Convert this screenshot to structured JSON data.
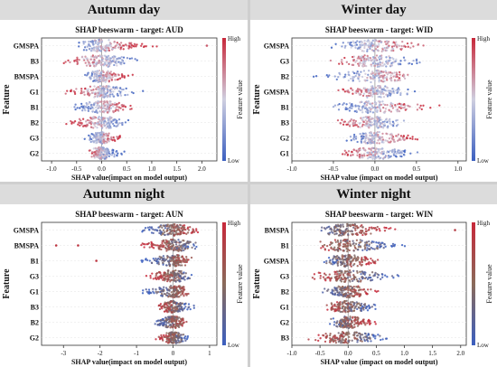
{
  "panels": [
    {
      "header": "Autumn day",
      "chart_data": {
        "type": "scatter",
        "title": "SHAP beeswarm - target: AUD",
        "xlabel": "SHAP value(impact on model output)",
        "ylabel": "Feature",
        "features": [
          "GMSPA",
          "B3",
          "BMSPA",
          "G1",
          "B1",
          "B2",
          "G3",
          "G2"
        ],
        "xlim": [
          -1.2,
          2.3
        ],
        "xticks": [
          "-1.0",
          "-0.5",
          "0.0",
          "0.5",
          "1.0",
          "1.5",
          "2.0"
        ],
        "xtick_values": [
          -1.0,
          -0.5,
          0.0,
          0.5,
          1.0,
          1.5,
          2.0
        ],
        "spreads": [
          [
            -0.55,
            1.3
          ],
          [
            -1.1,
            0.9
          ],
          [
            -0.45,
            0.75
          ],
          [
            -0.9,
            0.95
          ],
          [
            -0.85,
            0.9
          ],
          [
            -1.05,
            0.7
          ],
          [
            -0.4,
            0.6
          ],
          [
            -0.35,
            0.6
          ]
        ],
        "outliers": [
          [
            2.1
          ],
          [],
          [],
          [],
          [],
          [],
          [],
          []
        ],
        "colorbar": {
          "high": "High",
          "low": "Low",
          "label": "Feature value"
        }
      }
    },
    {
      "header": "Winter day",
      "chart_data": {
        "type": "scatter",
        "title": "SHAP beeswarm - target: WID",
        "xlabel": "SHAP value (impact on model output)",
        "ylabel": "Feature",
        "features": [
          "GMSPA",
          "G3",
          "B2",
          "GMSPA",
          "B1",
          "B3",
          "G2",
          "G1"
        ],
        "xlim": [
          -1.0,
          1.1
        ],
        "xticks": [
          "-1.0",
          "-0.5",
          "0.0",
          "0.5",
          "1.0"
        ],
        "xtick_values": [
          -1.0,
          -0.5,
          0.0,
          0.5,
          1.0
        ],
        "spreads": [
          [
            -0.75,
            0.85
          ],
          [
            -0.65,
            0.9
          ],
          [
            -0.95,
            0.65
          ],
          [
            -0.55,
            0.7
          ],
          [
            -0.7,
            0.95
          ],
          [
            -0.75,
            0.5
          ],
          [
            -0.45,
            0.7
          ],
          [
            -0.55,
            0.7
          ]
        ],
        "outliers": [
          [],
          [],
          [],
          [],
          [],
          [],
          [],
          []
        ],
        "colorbar": {
          "high": "High",
          "low": "Low",
          "label": "Feature value"
        }
      }
    },
    {
      "header": "Autumn night",
      "chart_data": {
        "type": "scatter",
        "title": "SHAP beeswarm - target: AUN",
        "xlabel": "SHAP value(impact on model output)",
        "ylabel": "Feature",
        "features": [
          "GMSPA",
          "BMSPA",
          "B1",
          "G3",
          "G1",
          "B3",
          "B2",
          "G2"
        ],
        "xlim": [
          -3.6,
          1.2
        ],
        "xticks": [
          "-3",
          "-2",
          "-1",
          "0",
          "1"
        ],
        "xtick_values": [
          -3,
          -2,
          -1,
          0,
          1
        ],
        "spreads": [
          [
            -1.1,
            0.95
          ],
          [
            -1.3,
            0.9
          ],
          [
            -1.2,
            0.7
          ],
          [
            -1.0,
            0.8
          ],
          [
            -1.3,
            0.6
          ],
          [
            -0.6,
            0.8
          ],
          [
            -0.7,
            0.6
          ],
          [
            -0.6,
            0.6
          ]
        ],
        "outliers": [
          [],
          [
            -3.2,
            -2.6
          ],
          [
            -2.1
          ],
          [],
          [],
          [],
          [],
          []
        ],
        "colorbar": {
          "high": "High",
          "low": "Low",
          "label": "Feature value"
        }
      }
    },
    {
      "header": "Winter night",
      "chart_data": {
        "type": "scatter",
        "title": "SHAP beeswarm - target: WIN",
        "xlabel": "SHAP value (impact on model output)",
        "ylabel": "Feature",
        "features": [
          "BMSPA",
          "B1",
          "GMSPA",
          "G3",
          "B2",
          "G1",
          "G2",
          "B3"
        ],
        "xlim": [
          -1.0,
          2.1
        ],
        "xticks": [
          "-1.0",
          "-0.5",
          "0.0",
          "0.5",
          "1.0",
          "1.5",
          "2.0"
        ],
        "xtick_values": [
          -1.0,
          -0.5,
          0.0,
          0.5,
          1.0,
          1.5,
          2.0
        ],
        "spreads": [
          [
            -0.7,
            1.2
          ],
          [
            -0.75,
            1.6
          ],
          [
            -0.6,
            1.0
          ],
          [
            -0.85,
            1.3
          ],
          [
            -0.6,
            0.9
          ],
          [
            -0.55,
            0.8
          ],
          [
            -0.45,
            0.7
          ],
          [
            -0.9,
            1.0
          ]
        ],
        "outliers": [
          [
            1.9
          ],
          [],
          [],
          [],
          [],
          [],
          [],
          []
        ],
        "colorbar": {
          "high": "High",
          "low": "Low",
          "label": "Feature value"
        }
      }
    }
  ],
  "colors": {
    "low": "#3b5fc0",
    "mid": "#cfcfe0",
    "high": "#c8283a",
    "night_mid": "#8a6a5a"
  }
}
